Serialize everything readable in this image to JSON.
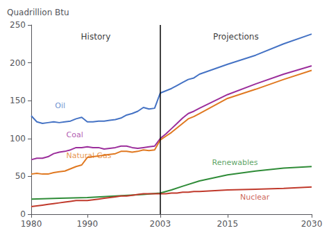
{
  "chart_data": {
    "type": "line",
    "y_label": "Quadrillion Btu",
    "xlim": [
      1980,
      2030
    ],
    "ylim": [
      0,
      250
    ],
    "xticks": [
      1980,
      1990,
      2003,
      2015,
      2030
    ],
    "yticks": [
      0,
      50,
      100,
      150,
      200,
      250
    ],
    "grid": false,
    "vlines": [
      2003
    ],
    "series": [
      {
        "name": "Oil",
        "color": "#4472C4",
        "x": [
          1980,
          1981,
          1982,
          1983,
          1984,
          1985,
          1986,
          1987,
          1988,
          1989,
          1990,
          1991,
          1992,
          1993,
          1994,
          1995,
          1996,
          1997,
          1998,
          1999,
          2000,
          2001,
          2002,
          2003,
          2004,
          2005,
          2006,
          2007,
          2008,
          2009,
          2010,
          2015,
          2020,
          2025,
          2030
        ],
        "values": [
          130,
          122,
          120,
          121,
          122,
          121,
          122,
          123,
          126,
          128,
          122,
          122,
          123,
          123,
          124,
          125,
          127,
          131,
          133,
          136,
          141,
          139,
          140,
          160,
          163,
          166,
          170,
          174,
          178,
          180,
          185,
          198,
          210,
          225,
          238
        ]
      },
      {
        "name": "Coal",
        "color": "#9b2d9b",
        "x": [
          1980,
          1981,
          1982,
          1983,
          1984,
          1985,
          1986,
          1987,
          1988,
          1989,
          1990,
          1991,
          1992,
          1993,
          1994,
          1995,
          1996,
          1997,
          1998,
          1999,
          2000,
          2001,
          2002,
          2003,
          2004,
          2005,
          2006,
          2007,
          2008,
          2009,
          2010,
          2015,
          2020,
          2025,
          2030
        ],
        "values": [
          72,
          74,
          74,
          76,
          80,
          82,
          83,
          85,
          88,
          88,
          89,
          88,
          88,
          86,
          87,
          88,
          90,
          90,
          88,
          87,
          88,
          89,
          90,
          100,
          106,
          113,
          120,
          127,
          133,
          136,
          140,
          158,
          172,
          185,
          196
        ]
      },
      {
        "name": "Natural Gas",
        "color": "#e07820",
        "x": [
          1980,
          1981,
          1982,
          1983,
          1984,
          1985,
          1986,
          1987,
          1988,
          1989,
          1990,
          1991,
          1992,
          1993,
          1994,
          1995,
          1996,
          1997,
          1998,
          1999,
          2000,
          2001,
          2002,
          2003,
          2004,
          2005,
          2006,
          2007,
          2008,
          2009,
          2010,
          2015,
          2020,
          2025,
          2030
        ],
        "values": [
          53,
          54,
          53,
          53,
          55,
          56,
          57,
          60,
          63,
          65,
          75,
          76,
          77,
          78,
          79,
          80,
          83,
          83,
          82,
          83,
          85,
          84,
          85,
          98,
          103,
          108,
          114,
          120,
          126,
          129,
          133,
          153,
          165,
          178,
          190
        ]
      },
      {
        "name": "Renewables",
        "color": "#2e8b37",
        "x": [
          1980,
          1985,
          1990,
          1995,
          2000,
          2003,
          2005,
          2007,
          2010,
          2015,
          2020,
          2025,
          2030
        ],
        "values": [
          20,
          21,
          22,
          24,
          26,
          28,
          32,
          37,
          44,
          52,
          57,
          61,
          63
        ]
      },
      {
        "name": "Nuclear",
        "color": "#c0392b",
        "x": [
          1980,
          1981,
          1982,
          1983,
          1984,
          1985,
          1986,
          1987,
          1988,
          1989,
          1990,
          1991,
          1992,
          1993,
          1994,
          1995,
          1996,
          1997,
          1998,
          1999,
          2000,
          2001,
          2002,
          2003,
          2004,
          2005,
          2006,
          2007,
          2008,
          2009,
          2010,
          2015,
          2020,
          2025,
          2030
        ],
        "values": [
          10,
          11,
          12,
          13,
          14,
          15,
          16,
          17,
          18,
          18,
          18,
          19,
          20,
          21,
          22,
          23,
          24,
          24,
          25,
          26,
          27,
          27,
          27,
          27,
          27,
          28,
          28,
          29,
          29,
          30,
          30,
          32,
          33,
          34,
          36
        ]
      }
    ],
    "annotations": [
      {
        "text": "History",
        "x": 1991.5,
        "y": 242
      },
      {
        "text": "Projections",
        "x": 2016.5,
        "y": 242
      },
      {
        "text": "Oil",
        "x": 1984,
        "y": 143,
        "color": "#4472C4"
      },
      {
        "text": "Coal",
        "x": 1986,
        "y": 105,
        "color": "#9b2d9b"
      },
      {
        "text": "Natural Gas",
        "x": 1986,
        "y": 77,
        "color": "#e07820"
      },
      {
        "text": "Renewables",
        "x": 2012,
        "y": 68,
        "color": "#2e8b37"
      },
      {
        "text": "Nuclear",
        "x": 2017,
        "y": 22,
        "color": "#c0392b"
      }
    ]
  }
}
